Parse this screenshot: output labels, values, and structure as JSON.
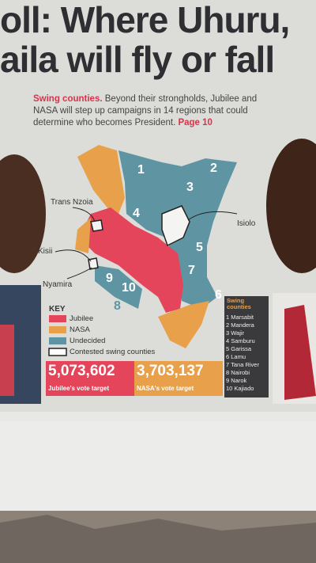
{
  "headline": {
    "line1": "oll: Where Uhuru,",
    "line2": "aila will fly or fall"
  },
  "intro": {
    "lead": "Swing counties.",
    "text": "Beyond their strongholds, Jubilee and NASA will step up campaigns in 14 regions that could determine who becomes President.",
    "ref": "Page 10"
  },
  "map": {
    "region_numbers": [
      "1",
      "2",
      "3",
      "4",
      "5",
      "6",
      "7",
      "8",
      "9",
      "10"
    ],
    "labels": [
      "Trans Nzoia",
      "Kisii",
      "Nyamira",
      "Isiolo"
    ]
  },
  "key": {
    "title": "KEY",
    "items": [
      "Jubilee",
      "NASA",
      "Undecided",
      "Contested swing counties"
    ]
  },
  "targets": [
    {
      "value": "5,073,602",
      "label": "Jubilee's vote target"
    },
    {
      "value": "3,703,137",
      "label": "NASA's vote target"
    }
  ],
  "swing_list": {
    "title": "Swing counties",
    "items": [
      "1 Marsabit",
      "2 Mandera",
      "3 Wajir",
      "4 Samburu",
      "5 Garissa",
      "6 Lamu",
      "7 Tana River",
      "8 Nairobi",
      "9 Narok",
      "10 Kajiado"
    ]
  }
}
